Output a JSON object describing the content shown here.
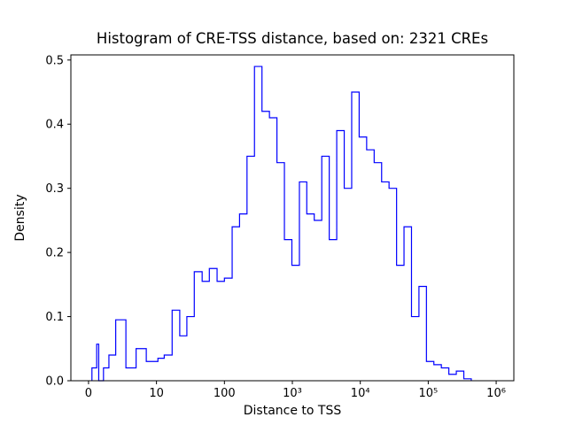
{
  "chart_data": {
    "type": "bar",
    "subtype": "step-histogram",
    "title": "Histogram of CRE-TSS distance, based on: 2321 CREs",
    "xlabel": "Distance to TSS",
    "ylabel": "Density",
    "x_scale": "symlog",
    "x_ticks": [
      {
        "value": 0,
        "label": "0"
      },
      {
        "value": 10,
        "label": "10"
      },
      {
        "value": 100,
        "label": "100"
      },
      {
        "value": 1000,
        "label": "10³"
      },
      {
        "value": 10000,
        "label": "10⁴"
      },
      {
        "value": 100000,
        "label": "10⁵"
      },
      {
        "value": 1000000,
        "label": "10⁶"
      }
    ],
    "y_ticks": [
      {
        "value": 0.0,
        "label": "0.0"
      },
      {
        "value": 0.1,
        "label": "0.1"
      },
      {
        "value": 0.2,
        "label": "0.2"
      },
      {
        "value": 0.3,
        "label": "0.3"
      },
      {
        "value": 0.4,
        "label": "0.4"
      },
      {
        "value": 0.5,
        "label": "0.5"
      }
    ],
    "ylim": [
      0,
      0.508
    ],
    "grid": false,
    "legend": "none",
    "line_color": "#0000ff",
    "axis_color": "#000000",
    "background_color": "#ffffff",
    "bin_edges": [
      0.5,
      1.2,
      1.5,
      2.2,
      3.0,
      4.0,
      5.5,
      7.0,
      8.5,
      10.5,
      13,
      17,
      22,
      28,
      36,
      47,
      60,
      78,
      100,
      130,
      167,
      215,
      277,
      357,
      460,
      593,
      764,
      984,
      1270,
      1630,
      2100,
      2710,
      3490,
      4500,
      5800,
      7470,
      9620,
      12400,
      16000,
      20600,
      26500,
      34200,
      44000,
      56700,
      73000,
      94100,
      121000,
      156000,
      201000,
      259000,
      334000,
      430000
    ],
    "densities": [
      0.02,
      0.057,
      0.0,
      0.02,
      0.04,
      0.095,
      0.02,
      0.05,
      0.03,
      0.035,
      0.04,
      0.11,
      0.07,
      0.1,
      0.17,
      0.155,
      0.175,
      0.155,
      0.16,
      0.24,
      0.26,
      0.35,
      0.49,
      0.42,
      0.41,
      0.34,
      0.22,
      0.18,
      0.31,
      0.26,
      0.25,
      0.35,
      0.22,
      0.39,
      0.3,
      0.45,
      0.38,
      0.36,
      0.34,
      0.31,
      0.3,
      0.18,
      0.24,
      0.1,
      0.147,
      0.03,
      0.025,
      0.02,
      0.01,
      0.015,
      0.003
    ]
  }
}
